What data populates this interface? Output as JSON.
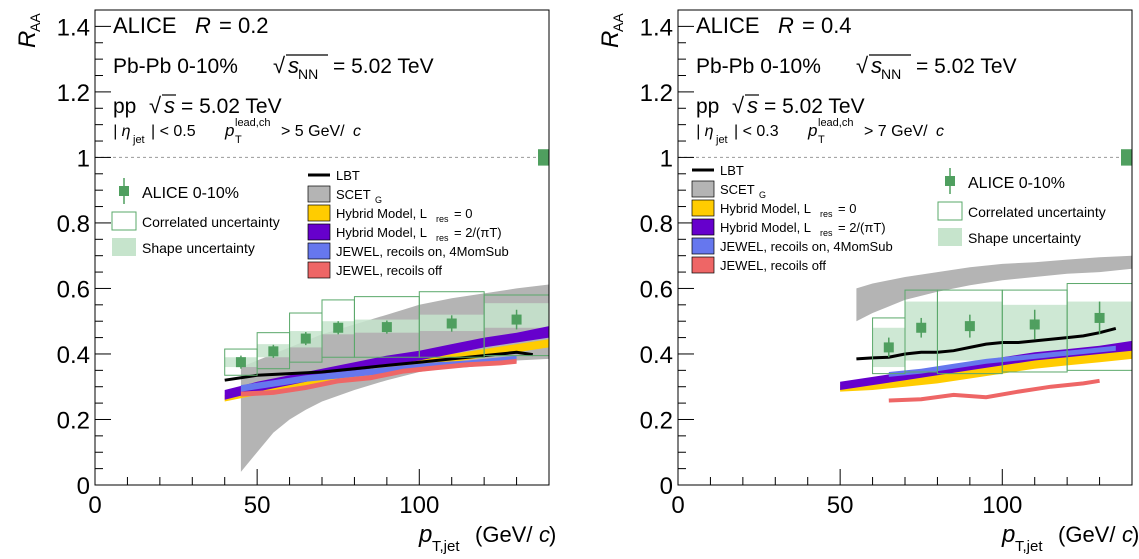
{
  "chart_data": [
    {
      "type": "line",
      "panel": "left",
      "xlabel": "p_T,jet (GeV/c)",
      "ylabel": "R_AA",
      "xlim": [
        0,
        140
      ],
      "ylim": [
        0,
        1.45
      ],
      "x_ticks": [
        "0",
        "50",
        "100"
      ],
      "y_ticks": [
        "0",
        "0.2",
        "0.4",
        "0.6",
        "0.8",
        "1",
        "1.2",
        "1.4"
      ],
      "annotations": {
        "line1a": "ALICE",
        "line1b": "R",
        "line1c": "= 0.2",
        "line2a": "Pb-Pb  0-10%",
        "line2b": "√",
        "line2c": "s",
        "line2d": "NN",
        "line2e": "= 5.02 TeV",
        "line3a": "pp",
        "line3b": "√",
        "line3c": "s",
        "line3d": "= 5.02 TeV",
        "line4a": "| η",
        "line4b": "jet",
        "line4c": "| < 0.5",
        "line4d": "p",
        "line4e": "T",
        "line4f": "lead,ch",
        "line4g": "> 5 GeV/",
        "line4h": "c"
      },
      "legend": {
        "data": "ALICE 0-10%",
        "corr": "Correlated uncertainty",
        "shape": "Shape uncertainty",
        "lbt": "LBT",
        "scet": "SCET",
        "scet_sub": "G",
        "hyb0": "Hybrid Model, L",
        "hyb0_sub": "res",
        "hyb0_tail": "= 0",
        "hyb2": "Hybrid Model, L",
        "hyb2_sub": "res",
        "hyb2_tail": "= 2/(πT)",
        "jon": "JEWEL, recoils on, 4MomSub",
        "joff": "JEWEL, recoils off"
      },
      "data_points": {
        "x": [
          45,
          55,
          65,
          75,
          90,
          110,
          130
        ],
        "y": [
          0.375,
          0.408,
          0.447,
          0.48,
          0.482,
          0.493,
          0.505
        ],
        "stat": [
          0.02,
          0.02,
          0.02,
          0.02,
          0.02,
          0.025,
          0.03
        ],
        "x_low": [
          40,
          50,
          60,
          70,
          80,
          100,
          120
        ],
        "x_high": [
          50,
          60,
          70,
          80,
          100,
          120,
          140
        ],
        "corr_low": [
          0.335,
          0.355,
          0.375,
          0.39,
          0.39,
          0.39,
          0.395
        ],
        "corr_high": [
          0.415,
          0.465,
          0.525,
          0.565,
          0.575,
          0.59,
          0.58
        ],
        "shape_low": [
          0.36,
          0.39,
          0.42,
          0.46,
          0.465,
          0.47,
          0.48
        ],
        "shape_high": [
          0.39,
          0.43,
          0.47,
          0.5,
          0.505,
          0.52,
          0.555
        ]
      },
      "lbt": {
        "x": [
          40,
          50,
          60,
          70,
          80,
          90,
          100,
          110,
          120,
          130,
          135
        ],
        "y": [
          0.32,
          0.335,
          0.34,
          0.345,
          0.355,
          0.365,
          0.375,
          0.385,
          0.395,
          0.405,
          0.398
        ]
      },
      "scet": {
        "x": [
          45,
          50,
          55,
          60,
          65,
          70,
          80,
          90,
          100,
          110,
          120,
          130,
          140
        ],
        "low": [
          0.04,
          0.1,
          0.16,
          0.2,
          0.23,
          0.255,
          0.29,
          0.32,
          0.345,
          0.36,
          0.37,
          0.38,
          0.385
        ],
        "high": [
          0.36,
          0.38,
          0.4,
          0.42,
          0.44,
          0.46,
          0.49,
          0.52,
          0.55,
          0.57,
          0.585,
          0.6,
          0.612
        ]
      },
      "hybrid_l0": {
        "x": [
          40,
          50,
          60,
          70,
          80,
          90,
          100,
          110,
          120,
          130,
          140
        ],
        "low": [
          0.255,
          0.275,
          0.29,
          0.305,
          0.32,
          0.34,
          0.355,
          0.375,
          0.39,
          0.405,
          0.42
        ],
        "high": [
          0.275,
          0.3,
          0.32,
          0.335,
          0.355,
          0.37,
          0.385,
          0.4,
          0.415,
          0.43,
          0.445
        ]
      },
      "hybrid_l2": {
        "x": [
          40,
          50,
          60,
          70,
          80,
          90,
          100,
          110,
          120,
          130,
          140
        ],
        "low": [
          0.26,
          0.285,
          0.305,
          0.325,
          0.345,
          0.365,
          0.38,
          0.4,
          0.42,
          0.435,
          0.45
        ],
        "high": [
          0.29,
          0.315,
          0.335,
          0.355,
          0.375,
          0.395,
          0.41,
          0.43,
          0.45,
          0.465,
          0.485
        ]
      },
      "jewel_on": {
        "x": [
          45,
          55,
          65,
          75,
          85,
          95,
          105,
          115,
          125,
          130
        ],
        "low": [
          0.285,
          0.3,
          0.315,
          0.325,
          0.335,
          0.345,
          0.355,
          0.36,
          0.37,
          0.375
        ],
        "high": [
          0.305,
          0.32,
          0.335,
          0.345,
          0.355,
          0.365,
          0.375,
          0.38,
          0.39,
          0.395
        ]
      },
      "jewel_off": {
        "x": [
          45,
          55,
          65,
          75,
          85,
          95,
          105,
          115,
          125,
          130
        ],
        "low": [
          0.27,
          0.275,
          0.29,
          0.31,
          0.32,
          0.34,
          0.35,
          0.36,
          0.365,
          0.37
        ],
        "high": [
          0.285,
          0.29,
          0.305,
          0.325,
          0.335,
          0.355,
          0.365,
          0.375,
          0.38,
          0.385
        ]
      },
      "global_unc": {
        "low": 0.975,
        "high": 1.025
      }
    },
    {
      "type": "line",
      "panel": "right",
      "xlabel": "p_T,jet (GeV/c)",
      "ylabel": "R_AA",
      "xlim": [
        0,
        140
      ],
      "ylim": [
        0,
        1.45
      ],
      "x_ticks": [
        "0",
        "50",
        "100"
      ],
      "y_ticks": [
        "0",
        "0.2",
        "0.4",
        "0.6",
        "0.8",
        "1",
        "1.2",
        "1.4"
      ],
      "annotations": {
        "line1a": "ALICE",
        "line1b": "R",
        "line1c": "= 0.4",
        "line2a": "Pb-Pb  0-10%",
        "line2b": "√",
        "line2c": "s",
        "line2d": "NN",
        "line2e": "= 5.02 TeV",
        "line3a": "pp",
        "line3b": "√",
        "line3c": "s",
        "line3d": "= 5.02 TeV",
        "line4a": "| η",
        "line4b": "jet",
        "line4c": "| < 0.3",
        "line4d": "p",
        "line4e": "T",
        "line4f": "lead,ch",
        "line4g": "> 7 GeV/",
        "line4h": "c"
      },
      "legend": {
        "data": "ALICE 0-10%",
        "corr": "Correlated uncertainty",
        "shape": "Shape uncertainty",
        "lbt": "LBT",
        "scet": "SCET",
        "scet_sub": "G",
        "hyb0": "Hybrid Model, L",
        "hyb0_sub": "res",
        "hyb0_tail": "= 0",
        "hyb2": "Hybrid Model, L",
        "hyb2_sub": "res",
        "hyb2_tail": "= 2/(πT)",
        "jon": "JEWEL, recoils on, 4MomSub",
        "joff": "JEWEL, recoils off"
      },
      "data_points": {
        "x": [
          65,
          75,
          90,
          110,
          130
        ],
        "y": [
          0.42,
          0.48,
          0.485,
          0.49,
          0.51
        ],
        "stat": [
          0.03,
          0.03,
          0.035,
          0.045,
          0.05
        ],
        "x_low": [
          60,
          70,
          80,
          100,
          120
        ],
        "x_high": [
          70,
          80,
          100,
          120,
          140
        ],
        "corr_low": [
          0.34,
          0.345,
          0.34,
          0.345,
          0.35
        ],
        "corr_high": [
          0.51,
          0.595,
          0.595,
          0.595,
          0.615
        ],
        "shape_low": [
          0.36,
          0.38,
          0.38,
          0.39,
          0.4
        ],
        "shape_high": [
          0.48,
          0.56,
          0.56,
          0.55,
          0.56
        ]
      },
      "lbt": {
        "x": [
          55,
          60,
          65,
          70,
          75,
          80,
          85,
          90,
          95,
          100,
          105,
          110,
          115,
          120,
          125,
          130,
          135
        ],
        "y": [
          0.385,
          0.388,
          0.39,
          0.4,
          0.405,
          0.405,
          0.41,
          0.42,
          0.43,
          0.435,
          0.435,
          0.44,
          0.445,
          0.45,
          0.455,
          0.465,
          0.478
        ]
      },
      "scet": {
        "x": [
          55,
          60,
          70,
          80,
          90,
          100,
          110,
          120,
          130,
          140
        ],
        "low": [
          0.5,
          0.525,
          0.565,
          0.59,
          0.61,
          0.625,
          0.635,
          0.645,
          0.65,
          0.66
        ],
        "high": [
          0.6,
          0.615,
          0.635,
          0.65,
          0.665,
          0.675,
          0.68,
          0.688,
          0.695,
          0.7
        ]
      },
      "hybrid_l0": {
        "x": [
          50,
          60,
          70,
          80,
          90,
          100,
          110,
          120,
          130,
          140
        ],
        "low": [
          0.285,
          0.29,
          0.3,
          0.31,
          0.325,
          0.34,
          0.355,
          0.365,
          0.375,
          0.385
        ],
        "high": [
          0.305,
          0.315,
          0.325,
          0.34,
          0.355,
          0.37,
          0.385,
          0.395,
          0.405,
          0.415
        ]
      },
      "hybrid_l2": {
        "x": [
          50,
          60,
          70,
          80,
          90,
          100,
          110,
          120,
          130,
          140
        ],
        "low": [
          0.29,
          0.305,
          0.32,
          0.335,
          0.35,
          0.365,
          0.38,
          0.39,
          0.4,
          0.41
        ],
        "high": [
          0.315,
          0.33,
          0.345,
          0.36,
          0.375,
          0.39,
          0.405,
          0.415,
          0.425,
          0.44
        ]
      },
      "jewel_on": {
        "x": [
          65,
          75,
          85,
          95,
          105,
          115,
          125,
          135
        ],
        "low": [
          0.33,
          0.34,
          0.355,
          0.37,
          0.38,
          0.39,
          0.4,
          0.41
        ],
        "high": [
          0.345,
          0.355,
          0.37,
          0.385,
          0.395,
          0.405,
          0.415,
          0.425
        ]
      },
      "jewel_off": {
        "x": [
          65,
          75,
          85,
          95,
          105,
          115,
          125,
          130
        ],
        "y": [
          0.258,
          0.262,
          0.275,
          0.268,
          0.285,
          0.3,
          0.31,
          0.318
        ]
      },
      "global_unc": {
        "low": 0.975,
        "high": 1.025
      }
    }
  ]
}
